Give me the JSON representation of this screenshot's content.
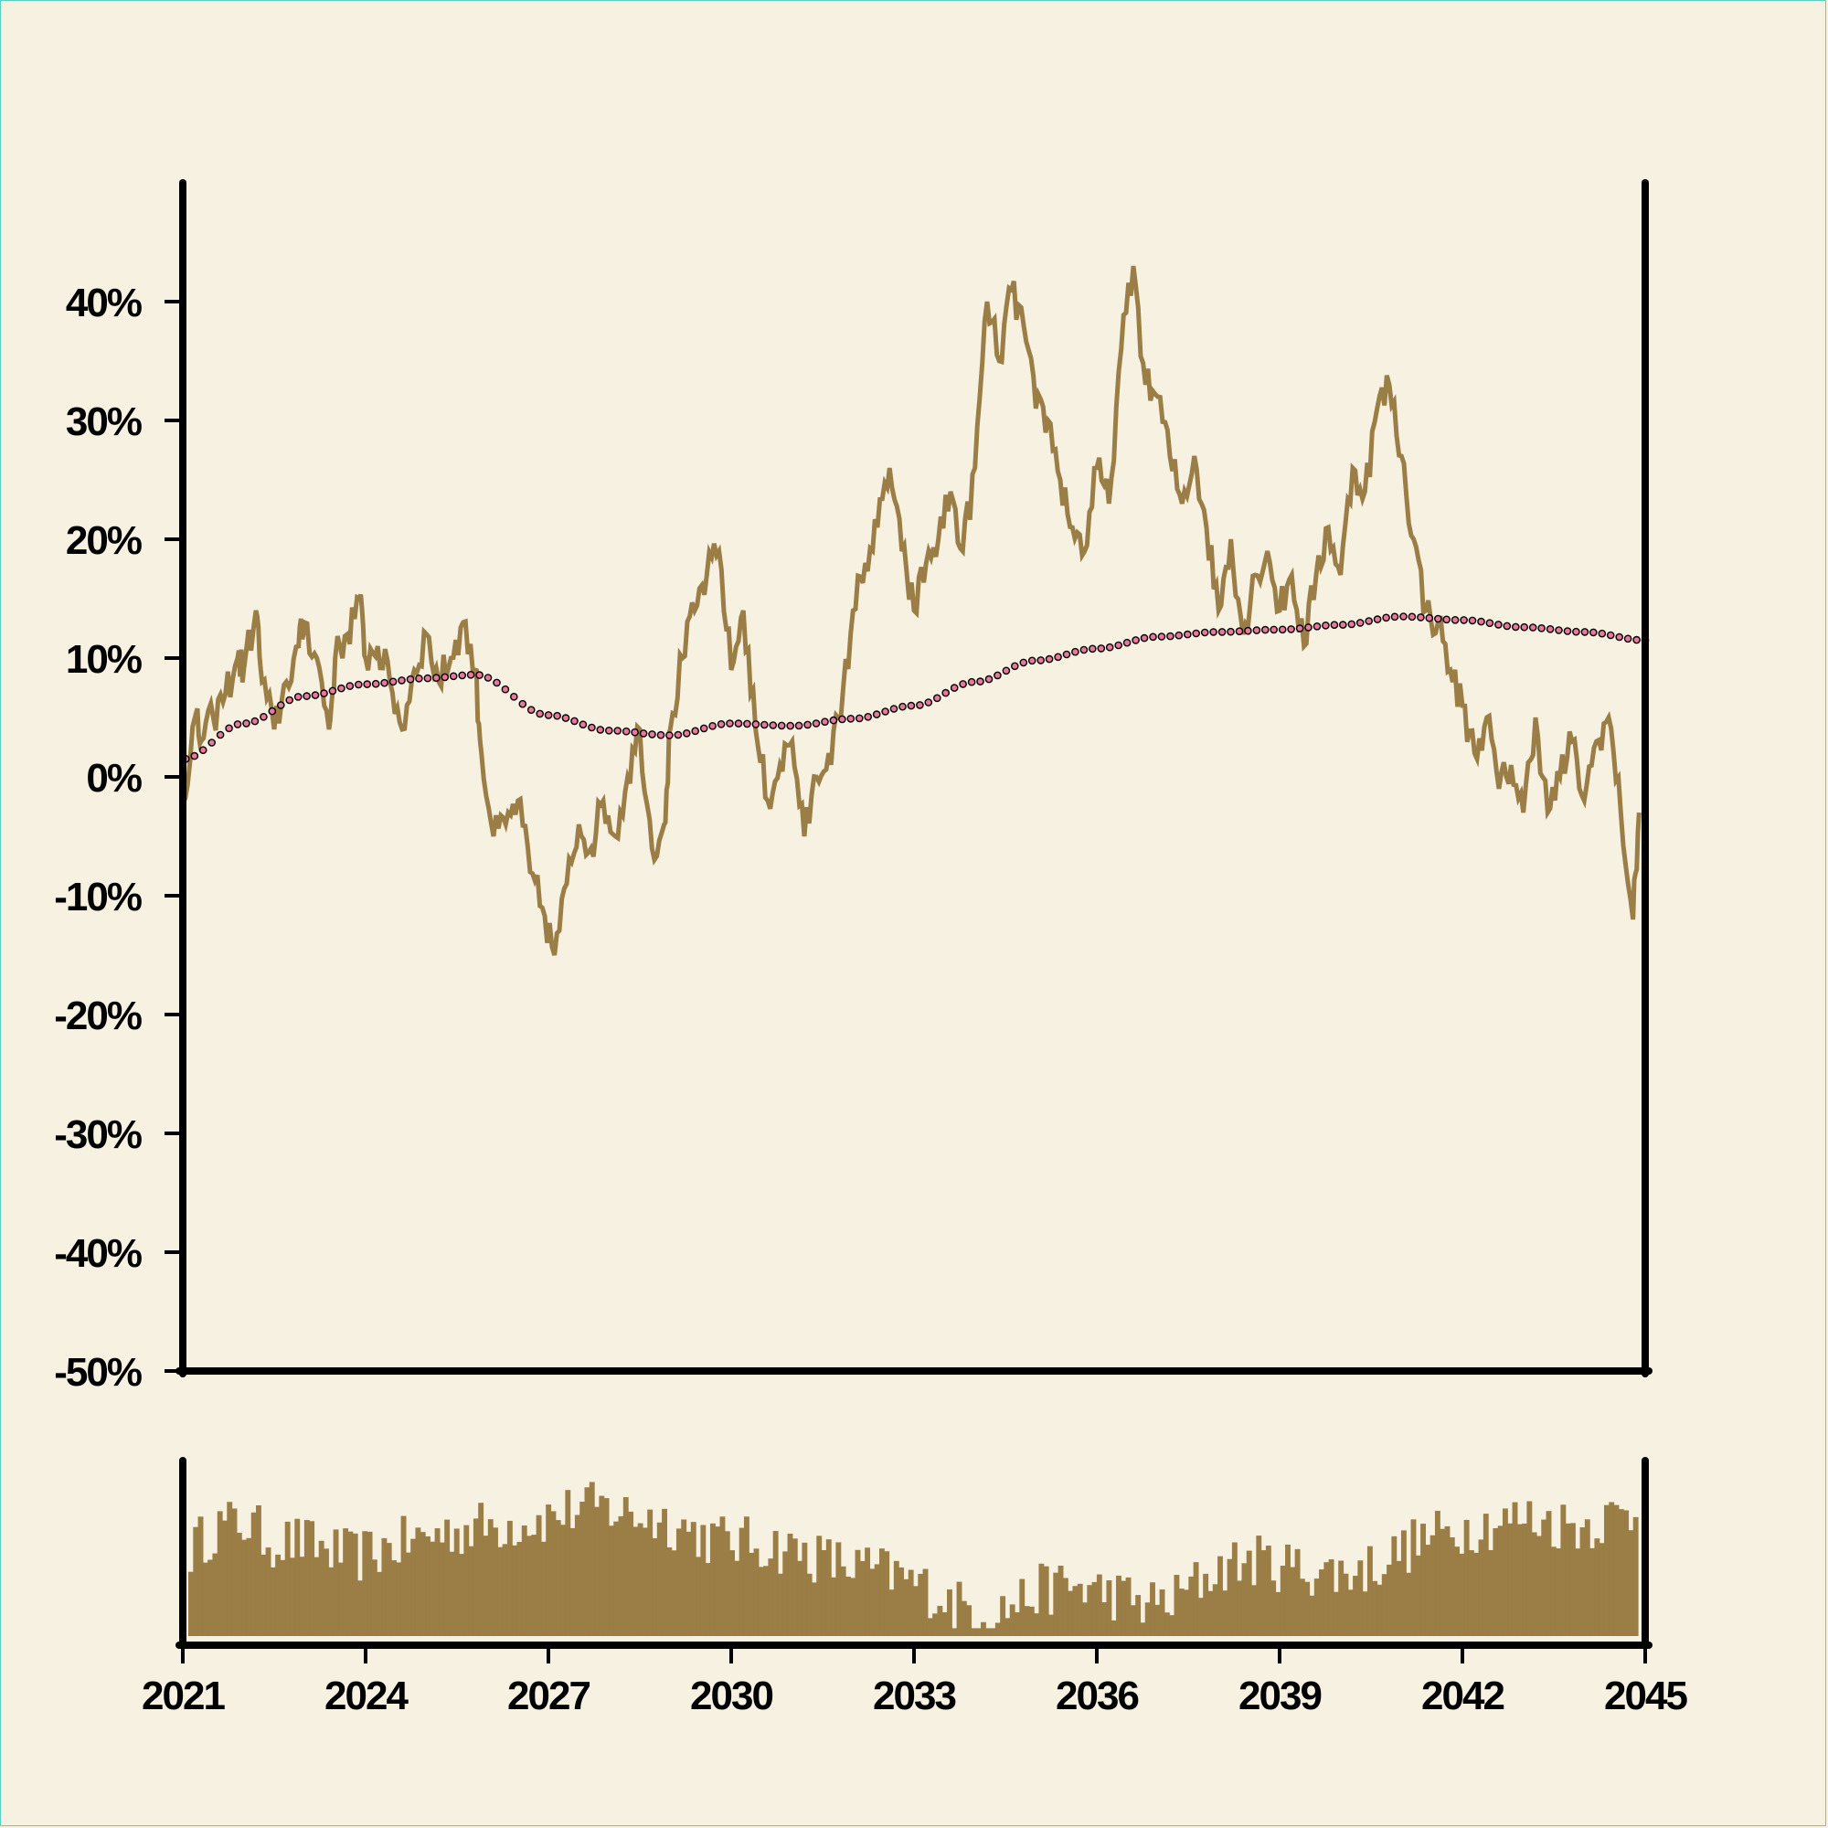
{
  "chart_data": {
    "type": "line",
    "title": "",
    "xlabel": "",
    "ylabel": "",
    "x_range": [
      2021,
      2045
    ],
    "ylim": [
      -50,
      50
    ],
    "yticks": [
      -50,
      -40,
      -30,
      -20,
      -10,
      0,
      10,
      20,
      30,
      40
    ],
    "ytick_labels": [
      "-50%",
      "-40%",
      "-30%",
      "-20%",
      "-10%",
      "0%",
      "10%",
      "20%",
      "30%",
      "40%"
    ],
    "xticks": [
      2021,
      2024,
      2027,
      2030,
      2033,
      2036,
      2039,
      2042,
      2045
    ],
    "xtick_labels": [
      "2021",
      "2024",
      "2027",
      "2030",
      "2033",
      "2036",
      "2039",
      "2042",
      "2045"
    ],
    "grid": false,
    "legend": "none",
    "colors": {
      "price": "#9b7d46",
      "trend": "#e8789c",
      "trend_edge": "#000000",
      "volume": "#9b7d46",
      "axis": "#000000",
      "background": "#f7f1e1"
    },
    "series": [
      {
        "style": "line",
        "x": [
          2021.0,
          2021.2,
          2021.3,
          2021.5,
          2021.7,
          2021.9,
          2022.0,
          2022.2,
          2022.3,
          2022.5,
          2022.7,
          2022.9,
          2023.0,
          2023.2,
          2023.4,
          2023.5,
          2023.7,
          2023.9,
          2024.0,
          2024.2,
          2024.4,
          2024.6,
          2024.8,
          2025.0,
          2025.2,
          2025.4,
          2025.6,
          2025.8,
          2025.9,
          2026.1,
          2026.3,
          2026.5,
          2026.7,
          2026.9,
          2027.1,
          2027.3,
          2027.5,
          2027.7,
          2027.9,
          2028.1,
          2028.3,
          2028.5,
          2028.7,
          2028.9,
          2029.0,
          2029.2,
          2029.4,
          2029.6,
          2029.8,
          2030.0,
          2030.2,
          2030.4,
          2030.6,
          2030.8,
          2031.0,
          2031.2,
          2031.4,
          2031.6,
          2031.8,
          2032.0,
          2032.2,
          2032.4,
          2032.6,
          2032.8,
          2033.0,
          2033.2,
          2033.4,
          2033.6,
          2033.8,
          2034.0,
          2034.2,
          2034.4,
          2034.6,
          2034.8,
          2035.0,
          2035.2,
          2035.4,
          2035.6,
          2035.8,
          2036.0,
          2036.2,
          2036.4,
          2036.6,
          2036.8,
          2037.0,
          2037.2,
          2037.4,
          2037.6,
          2037.8,
          2038.0,
          2038.2,
          2038.4,
          2038.6,
          2038.8,
          2039.0,
          2039.2,
          2039.4,
          2039.6,
          2039.8,
          2040.0,
          2040.2,
          2040.4,
          2040.6,
          2040.8,
          2041.0,
          2041.2,
          2041.4,
          2041.6,
          2041.8,
          2042.0,
          2042.2,
          2042.4,
          2042.6,
          2042.8,
          2043.0,
          2043.2,
          2043.4,
          2043.6,
          2043.8,
          2044.0,
          2044.2,
          2044.4,
          2044.6,
          2044.8,
          2044.9
        ],
        "values": [
          -2,
          5,
          3,
          5,
          7,
          10,
          9,
          14,
          8,
          4,
          8,
          11,
          13,
          10,
          4,
          10,
          12,
          15,
          10,
          11,
          8,
          4,
          9,
          12,
          8,
          10,
          13,
          9,
          2,
          -5,
          -4,
          -2,
          -8,
          -11,
          -15,
          -9,
          -4,
          -6,
          -2,
          -5,
          0,
          4,
          -6,
          -4,
          4,
          10,
          14,
          17,
          19,
          9,
          14,
          4,
          -2,
          1,
          3,
          -5,
          0,
          2,
          5,
          14,
          18,
          21,
          26,
          19,
          14,
          18,
          20,
          24,
          19,
          26,
          40,
          35,
          41,
          38,
          31,
          30,
          25,
          21,
          19,
          26,
          23,
          36,
          43,
          33,
          32,
          27,
          23,
          27,
          21,
          14,
          20,
          12,
          17,
          19,
          14,
          17,
          11,
          17,
          21,
          17,
          26,
          24,
          31,
          33,
          27,
          20,
          14,
          13,
          9,
          6,
          2,
          5,
          -1,
          1,
          -3,
          5,
          -3,
          0,
          3,
          -2,
          3,
          5,
          -3,
          -12,
          -3
        ],
        "dates_to": 2045
      },
      {
        "style": "dots",
        "x": [
          2021.0,
          2022.0,
          2023.0,
          2024.0,
          2025.0,
          2025.8,
          2027.0,
          2028.0,
          2029.0,
          2030.0,
          2031.0,
          2032.0,
          2033.0,
          2034.0,
          2035.0,
          2036.0,
          2037.0,
          2038.0,
          2039.0,
          2040.0,
          2041.0,
          2042.0,
          2043.0,
          2044.0,
          2045.0
        ],
        "values": [
          1.5,
          4.5,
          6.8,
          7.8,
          8.3,
          8.6,
          5.2,
          3.9,
          3.5,
          4.5,
          4.3,
          4.9,
          6.0,
          8.0,
          9.8,
          10.8,
          11.8,
          12.2,
          12.4,
          12.8,
          13.5,
          13.2,
          12.6,
          12.2,
          11.5
        ]
      }
    ],
    "volume_panel": {
      "type": "bar",
      "x_range": [
        2021,
        2045
      ],
      "relative_heights": [
        0.55,
        0.7,
        0.72,
        0.6,
        0.6,
        0.55,
        0.5,
        0.55,
        0.6,
        0.65,
        0.68,
        0.7,
        0.72,
        0.75,
        0.8,
        0.82,
        0.78,
        0.75,
        0.7,
        0.62,
        0.6,
        0.58,
        0.55,
        0.5,
        0.45,
        0.42,
        0.38,
        0.3,
        0.2,
        0.16,
        0.18,
        0.28,
        0.32,
        0.3,
        0.26,
        0.2,
        0.22,
        0.35,
        0.45,
        0.48,
        0.45,
        0.42,
        0.4,
        0.42,
        0.5,
        0.6,
        0.65,
        0.7,
        0.72,
        0.75,
        0.72,
        0.7,
        0.75,
        0.78
      ]
    }
  }
}
